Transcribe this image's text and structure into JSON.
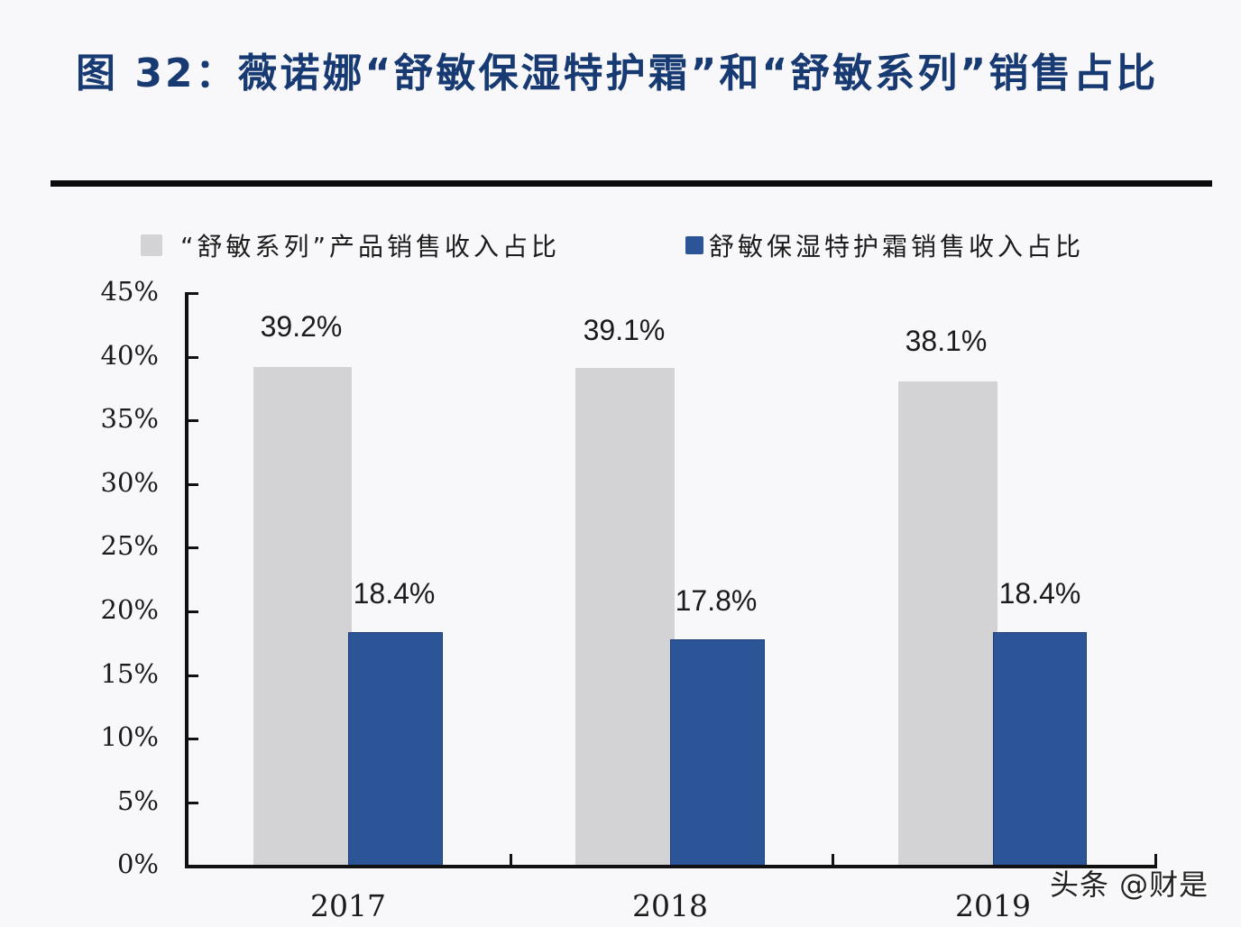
{
  "title": "图 32：薇诺娜“舒敏保湿特护霜”和“舒敏系列”销售占比",
  "watermark": "头条 @财是",
  "colors": {
    "series1": "#d3d3d6",
    "series2": "#2b5597",
    "title": "#173a72",
    "axis": "#111111"
  },
  "legend": [
    {
      "label": "“舒敏系列”产品销售收入占比",
      "color": "#d3d3d6"
    },
    {
      "label": "舒敏保湿特护霜销售收入占比",
      "color": "#2b5597"
    }
  ],
  "y_ticks": [
    "45%",
    "40%",
    "35%",
    "30%",
    "25%",
    "20%",
    "15%",
    "10%",
    "5%",
    "0%"
  ],
  "x_ticks": [
    "2017",
    "2018",
    "2019"
  ],
  "value_labels": {
    "s1": [
      "39.2%",
      "39.1%",
      "38.1%"
    ],
    "s2": [
      "18.4%",
      "17.8%",
      "18.4%"
    ]
  },
  "chart_data": {
    "type": "bar",
    "title": "图 32：薇诺娜“舒敏保湿特护霜”和“舒敏系列”销售占比",
    "categories": [
      "2017",
      "2018",
      "2019"
    ],
    "series": [
      {
        "name": "“舒敏系列”产品销售收入占比",
        "values": [
          39.2,
          39.1,
          38.1
        ],
        "color": "#d3d3d6"
      },
      {
        "name": "舒敏保湿特护霜销售收入占比",
        "values": [
          18.4,
          17.8,
          18.4
        ],
        "color": "#2b5597"
      }
    ],
    "xlabel": "",
    "ylabel": "",
    "ylim": [
      0,
      45
    ],
    "y_tick_step": 5,
    "y_format": "percent",
    "data_labels": true,
    "grid": false,
    "legend_position": "top"
  }
}
